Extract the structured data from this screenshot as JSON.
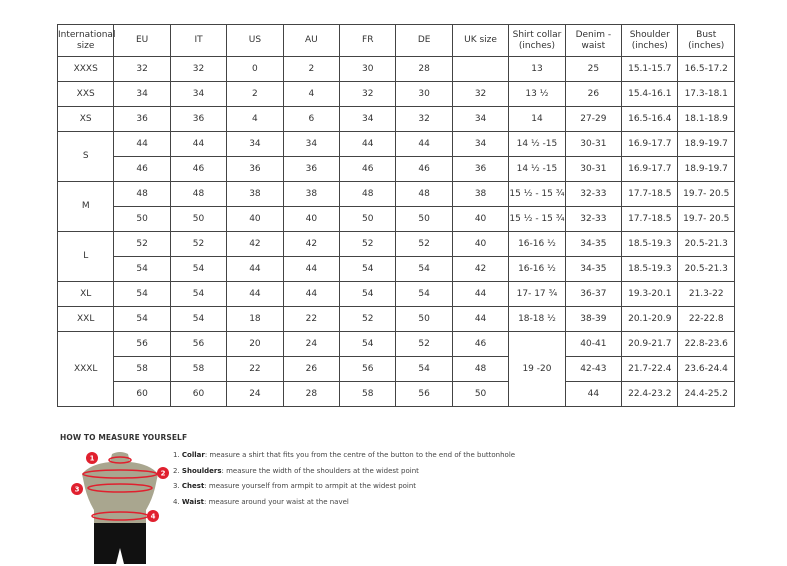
{
  "table": {
    "headers": [
      "International size",
      "EU",
      "IT",
      "US",
      "AU",
      "FR",
      "DE",
      "UK size",
      "Shirt collar (inches)",
      "Denim - waist",
      "Shoulder (inches)",
      "Bust (inches)"
    ],
    "groups": [
      {
        "size": "XXXS",
        "rows": [
          [
            "32",
            "32",
            "0",
            "2",
            "30",
            "28",
            "",
            "13",
            "25",
            "15.1-15.7",
            "16.5-17.2"
          ]
        ]
      },
      {
        "size": "XXS",
        "rows": [
          [
            "34",
            "34",
            "2",
            "4",
            "32",
            "30",
            "32",
            "13 ½",
            "26",
            "15.4-16.1",
            "17.3-18.1"
          ]
        ]
      },
      {
        "size": "XS",
        "rows": [
          [
            "36",
            "36",
            "4",
            "6",
            "34",
            "32",
            "34",
            "14",
            "27-29",
            "16.5-16.4",
            "18.1-18.9"
          ]
        ]
      },
      {
        "size": "S",
        "rows": [
          [
            "44",
            "44",
            "34",
            "34",
            "44",
            "44",
            "34",
            "14 ½ -15",
            "30-31",
            "16.9-17.7",
            "18.9-19.7"
          ],
          [
            "46",
            "46",
            "36",
            "36",
            "46",
            "46",
            "36",
            "14 ½ -15",
            "30-31",
            "16.9-17.7",
            "18.9-19.7"
          ]
        ]
      },
      {
        "size": "M",
        "rows": [
          [
            "48",
            "48",
            "38",
            "38",
            "48",
            "48",
            "38",
            "15 ½ - 15 ¾",
            "32-33",
            "17.7-18.5",
            "19.7- 20.5"
          ],
          [
            "50",
            "50",
            "40",
            "40",
            "50",
            "50",
            "40",
            "15 ½ - 15 ¾",
            "32-33",
            "17.7-18.5",
            "19.7- 20.5"
          ]
        ]
      },
      {
        "size": "L",
        "rows": [
          [
            "52",
            "52",
            "42",
            "42",
            "52",
            "52",
            "40",
            "16-16 ½",
            "34-35",
            "18.5-19.3",
            "20.5-21.3"
          ],
          [
            "54",
            "54",
            "44",
            "44",
            "54",
            "54",
            "42",
            "16-16 ½",
            "34-35",
            "18.5-19.3",
            "20.5-21.3"
          ]
        ]
      },
      {
        "size": "XL",
        "rows": [
          [
            "54",
            "54",
            "44",
            "44",
            "54",
            "54",
            "44",
            "17- 17 ¾",
            "36-37",
            "19.3-20.1",
            "21.3-22"
          ]
        ]
      },
      {
        "size": "XXL",
        "rows": [
          [
            "54",
            "54",
            "18",
            "22",
            "52",
            "50",
            "44",
            "18-18 ½",
            "38-39",
            "20.1-20.9",
            "22-22.8"
          ]
        ]
      },
      {
        "size": "XXXL",
        "merged_collar": "19 -20",
        "rows": [
          [
            "56",
            "56",
            "20",
            "24",
            "54",
            "52",
            "46",
            null,
            "40-41",
            "20.9-21.7",
            "22.8-23.6"
          ],
          [
            "58",
            "58",
            "22",
            "26",
            "56",
            "54",
            "48",
            null,
            "42-43",
            "21.7-22.4",
            "23.6-24.4"
          ],
          [
            "60",
            "60",
            "24",
            "28",
            "58",
            "56",
            "50",
            null,
            "44",
            "22.4-23.2",
            "24.4-25.2"
          ]
        ]
      }
    ]
  },
  "howto": {
    "title": "HOW TO MEASURE YOURSELF",
    "steps": [
      {
        "num": "1.",
        "term": "Collar",
        "text": ": measure a shirt that fits you from the centre of the button to the end of the buttonhole"
      },
      {
        "num": "2.",
        "term": "Shoulders",
        "text": ": measure the width of the shoulders at the widest point"
      },
      {
        "num": "3.",
        "term": "Chest",
        "text": ": measure yourself from armpit to armpit at the widest point"
      },
      {
        "num": "4.",
        "term": "Waist",
        "text": ": measure around your waist at the navel"
      }
    ],
    "markers": [
      "1",
      "2",
      "3",
      "4"
    ],
    "colors": {
      "accent": "#e0202e",
      "torso": "#a9a68f",
      "shorts": "#111111"
    }
  }
}
